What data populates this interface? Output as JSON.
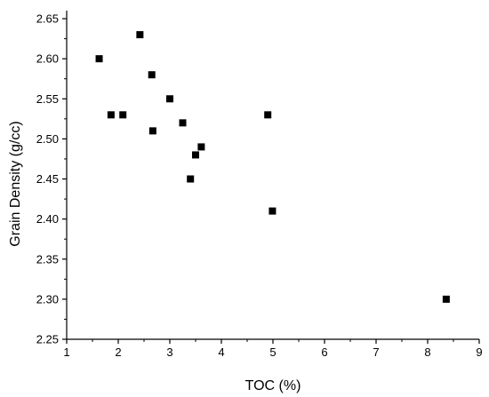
{
  "colors": {
    "marker": "#000000",
    "axis": "#000000",
    "background": "#ffffff"
  },
  "chart_data": {
    "type": "scatter",
    "title": "",
    "xlabel": "TOC (%)",
    "ylabel": "Grain Density (g/cc)",
    "xlim": [
      1,
      9
    ],
    "ylim": [
      2.25,
      2.66
    ],
    "x_ticks": [
      1,
      2,
      3,
      4,
      5,
      6,
      7,
      8,
      9
    ],
    "y_ticks": [
      2.25,
      2.3,
      2.35,
      2.4,
      2.45,
      2.5,
      2.55,
      2.6,
      2.65
    ],
    "x_tick_labels": [
      "1",
      "2",
      "3",
      "4",
      "5",
      "6",
      "7",
      "8",
      "9"
    ],
    "y_tick_labels": [
      "2.25",
      "2.30",
      "2.35",
      "2.40",
      "2.45",
      "2.50",
      "2.55",
      "2.60",
      "2.65"
    ],
    "grid": false,
    "marker": "square",
    "points": [
      {
        "x": 1.63,
        "y": 2.6
      },
      {
        "x": 1.86,
        "y": 2.53
      },
      {
        "x": 2.09,
        "y": 2.53
      },
      {
        "x": 2.42,
        "y": 2.63
      },
      {
        "x": 2.65,
        "y": 2.58
      },
      {
        "x": 2.67,
        "y": 2.51
      },
      {
        "x": 3.0,
        "y": 2.55
      },
      {
        "x": 3.25,
        "y": 2.52
      },
      {
        "x": 3.4,
        "y": 2.45
      },
      {
        "x": 3.5,
        "y": 2.48
      },
      {
        "x": 3.61,
        "y": 2.49
      },
      {
        "x": 4.9,
        "y": 2.53
      },
      {
        "x": 4.99,
        "y": 2.41
      },
      {
        "x": 8.36,
        "y": 2.3
      }
    ]
  }
}
